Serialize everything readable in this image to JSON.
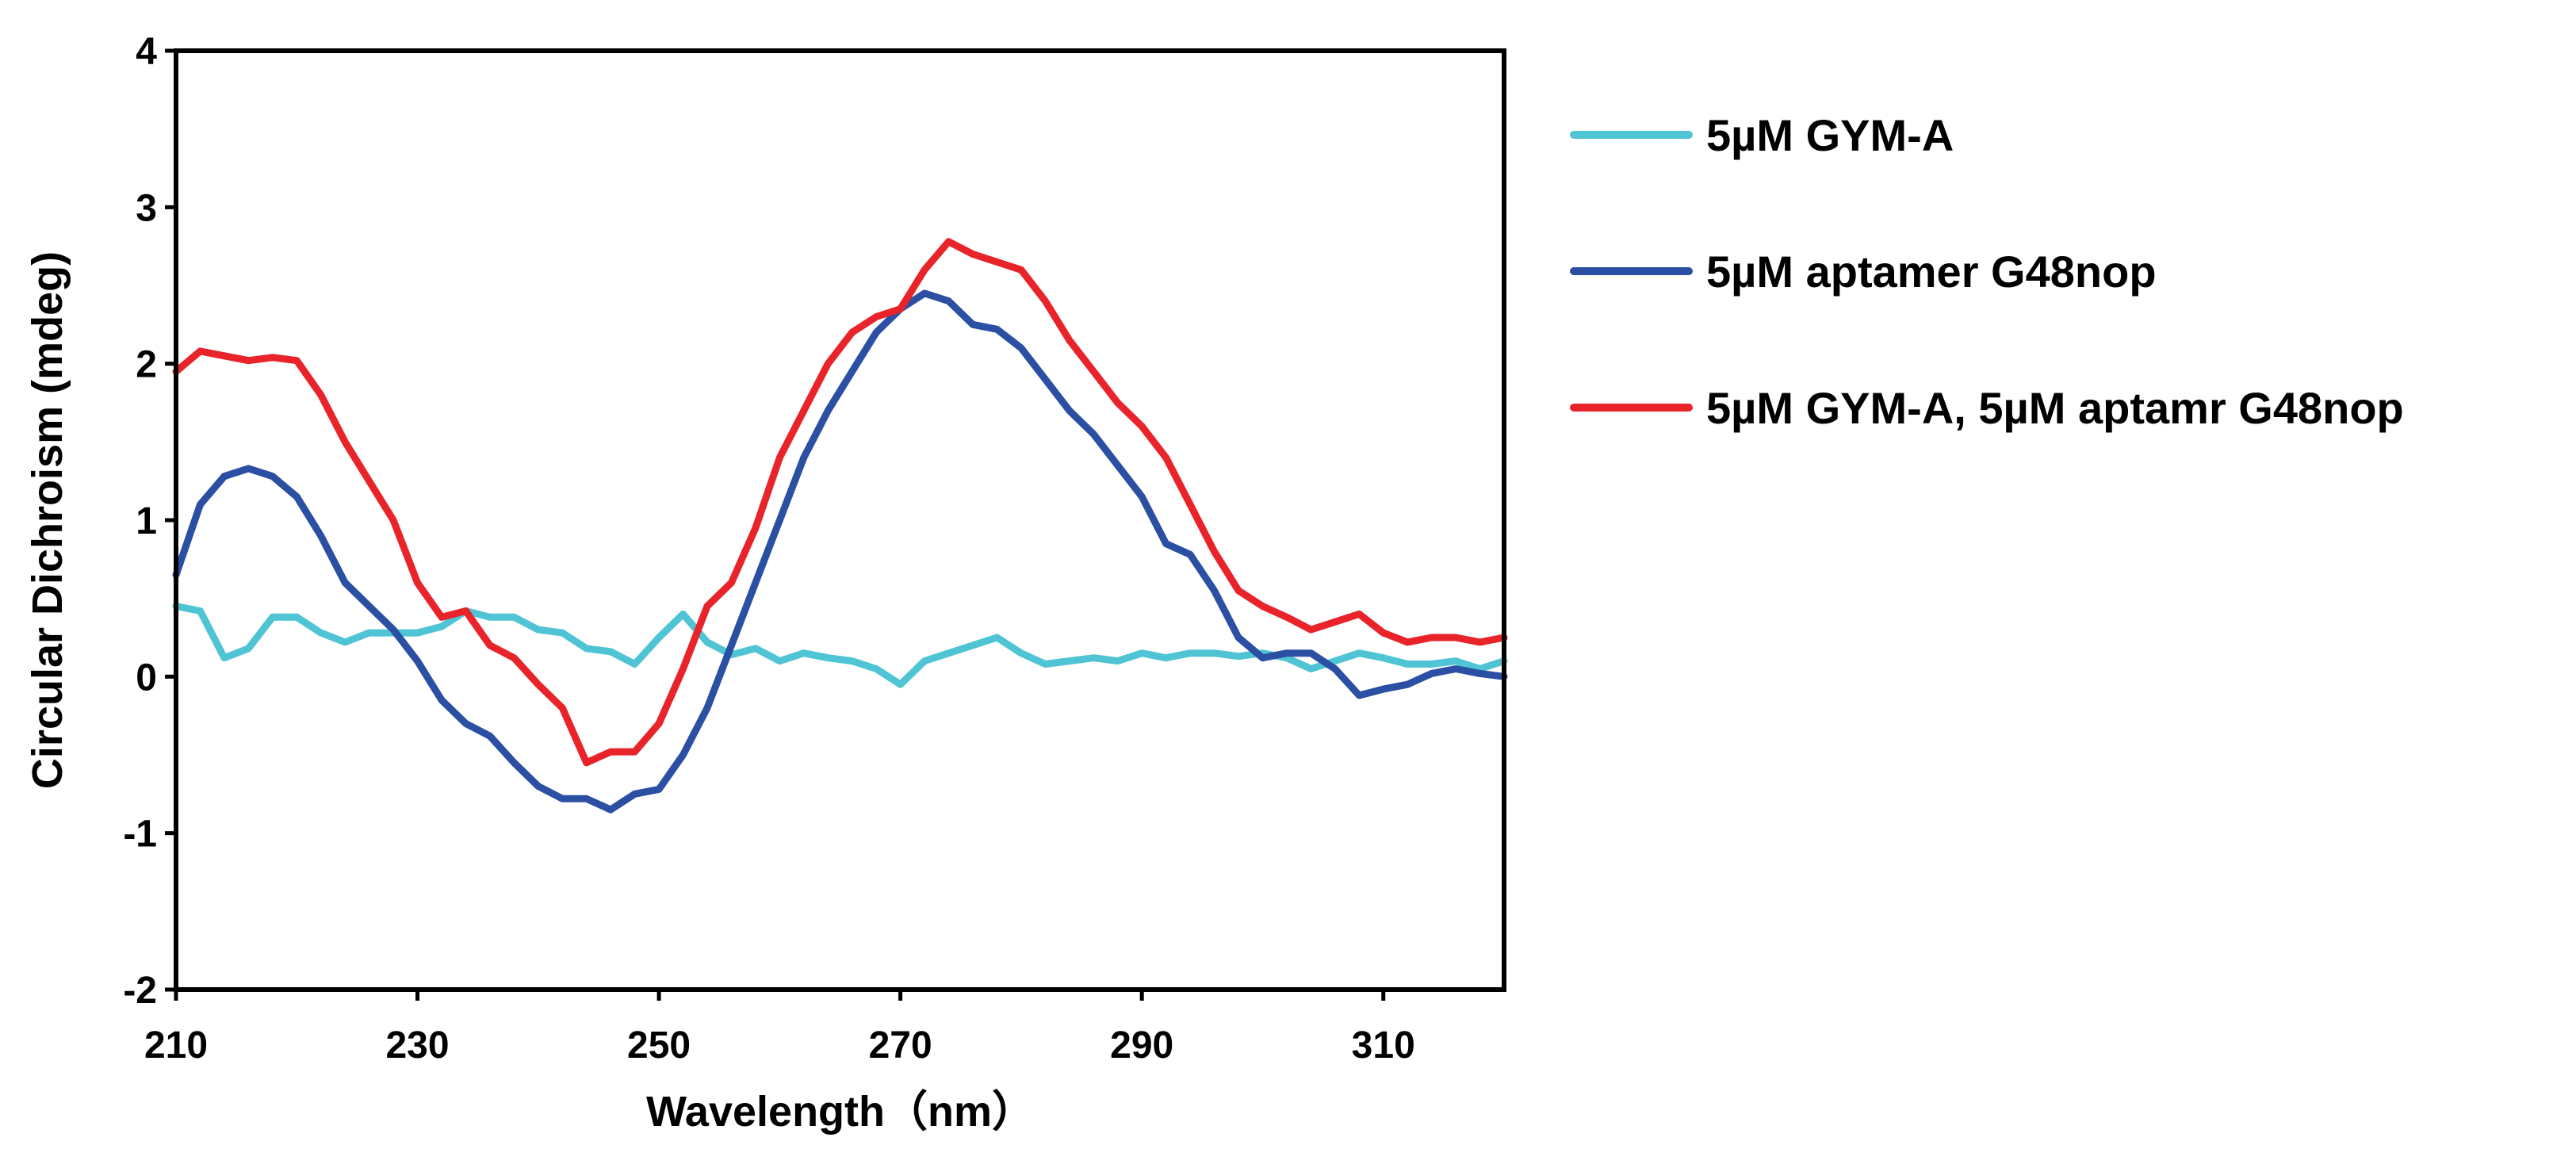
{
  "chart_data": {
    "type": "line",
    "title": "",
    "xlabel": "Wavelength（nm）",
    "ylabel": "Circular Dichroism (mdeg)",
    "xlim": [
      210,
      320
    ],
    "ylim": [
      -2,
      4
    ],
    "xticks": [
      210,
      230,
      250,
      270,
      290,
      310
    ],
    "yticks": [
      -2,
      -1,
      0,
      1,
      2,
      3,
      4
    ],
    "grid": false,
    "legend_position": "right",
    "series": [
      {
        "name": "5µM GYM-A",
        "color": "#4fc4d4",
        "x": [
          210,
          212,
          214,
          216,
          218,
          220,
          222,
          224,
          226,
          228,
          230,
          232,
          234,
          236,
          238,
          240,
          242,
          244,
          246,
          248,
          250,
          252,
          254,
          256,
          258,
          260,
          262,
          264,
          266,
          268,
          270,
          272,
          274,
          276,
          278,
          280,
          282,
          284,
          286,
          288,
          290,
          292,
          294,
          296,
          298,
          300,
          302,
          304,
          306,
          308,
          310,
          312,
          314,
          316,
          318,
          320
        ],
        "values": [
          0.45,
          0.42,
          0.12,
          0.18,
          0.38,
          0.38,
          0.28,
          0.22,
          0.28,
          0.28,
          0.28,
          0.32,
          0.42,
          0.38,
          0.38,
          0.3,
          0.28,
          0.18,
          0.16,
          0.08,
          0.25,
          0.4,
          0.22,
          0.14,
          0.18,
          0.1,
          0.15,
          0.12,
          0.1,
          0.05,
          -0.05,
          0.1,
          0.15,
          0.2,
          0.25,
          0.15,
          0.08,
          0.1,
          0.12,
          0.1,
          0.15,
          0.12,
          0.15,
          0.15,
          0.13,
          0.15,
          0.12,
          0.05,
          0.1,
          0.15,
          0.12,
          0.08,
          0.08,
          0.1,
          0.05,
          0.1
        ]
      },
      {
        "name": "5µM aptamer G48nop",
        "color": "#2a4fa3",
        "x": [
          210,
          212,
          214,
          216,
          218,
          220,
          222,
          224,
          226,
          228,
          230,
          232,
          234,
          236,
          238,
          240,
          242,
          244,
          246,
          248,
          250,
          252,
          254,
          256,
          258,
          260,
          262,
          264,
          266,
          268,
          270,
          272,
          274,
          276,
          278,
          280,
          282,
          284,
          286,
          288,
          290,
          292,
          294,
          296,
          298,
          300,
          302,
          304,
          306,
          308,
          310,
          312,
          314,
          316,
          318,
          320
        ],
        "values": [
          0.65,
          1.1,
          1.28,
          1.33,
          1.28,
          1.15,
          0.9,
          0.6,
          0.45,
          0.3,
          0.1,
          -0.15,
          -0.3,
          -0.38,
          -0.55,
          -0.7,
          -0.78,
          -0.78,
          -0.85,
          -0.75,
          -0.72,
          -0.5,
          -0.2,
          0.2,
          0.6,
          1.0,
          1.4,
          1.7,
          1.95,
          2.2,
          2.35,
          2.45,
          2.4,
          2.25,
          2.22,
          2.1,
          1.9,
          1.7,
          1.55,
          1.35,
          1.15,
          0.85,
          0.78,
          0.55,
          0.25,
          0.12,
          0.15,
          0.15,
          0.05,
          -0.12,
          -0.08,
          -0.05,
          0.02,
          0.05,
          0.02,
          0.0
        ]
      },
      {
        "name": "5µM GYM-A, 5µM aptamr G48nop",
        "color": "#e8232a",
        "x": [
          210,
          212,
          214,
          216,
          218,
          220,
          222,
          224,
          226,
          228,
          230,
          232,
          234,
          236,
          238,
          240,
          242,
          244,
          246,
          248,
          250,
          252,
          254,
          256,
          258,
          260,
          262,
          264,
          266,
          268,
          270,
          272,
          274,
          276,
          278,
          280,
          282,
          284,
          286,
          288,
          290,
          292,
          294,
          296,
          298,
          300,
          302,
          304,
          306,
          308,
          310,
          312,
          314,
          316,
          318,
          320
        ],
        "values": [
          1.95,
          2.08,
          2.05,
          2.02,
          2.04,
          2.02,
          1.8,
          1.5,
          1.25,
          1.0,
          0.6,
          0.38,
          0.42,
          0.2,
          0.12,
          -0.05,
          -0.2,
          -0.55,
          -0.48,
          -0.48,
          -0.3,
          0.05,
          0.45,
          0.6,
          0.95,
          1.4,
          1.7,
          2.0,
          2.2,
          2.3,
          2.35,
          2.6,
          2.78,
          2.7,
          2.65,
          2.6,
          2.4,
          2.15,
          1.95,
          1.75,
          1.6,
          1.4,
          1.1,
          0.8,
          0.55,
          0.45,
          0.38,
          0.3,
          0.35,
          0.4,
          0.28,
          0.22,
          0.25,
          0.25,
          0.22,
          0.25
        ]
      }
    ]
  }
}
